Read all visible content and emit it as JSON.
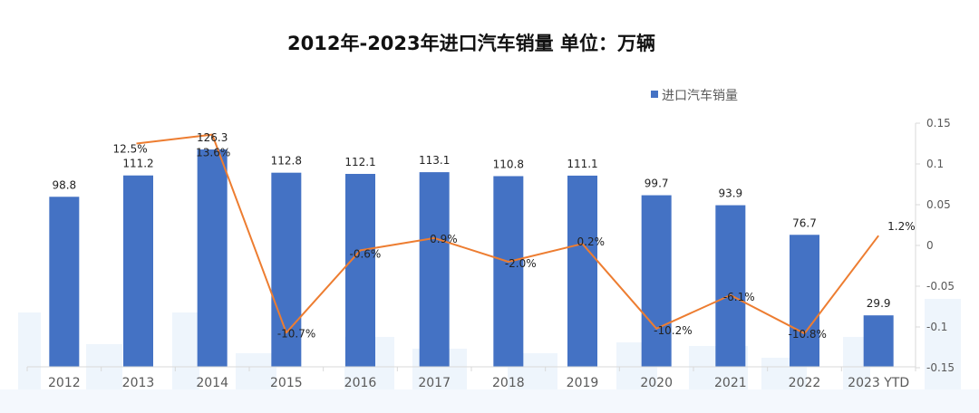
{
  "chart_data": {
    "type": "bar",
    "title": "2012年-2023年进口汽车销量  单位：万辆",
    "categories": [
      "2012",
      "2013",
      "2014",
      "2015",
      "2016",
      "2017",
      "2018",
      "2019",
      "2020",
      "2021",
      "2022",
      "2023 YTD"
    ],
    "series": [
      {
        "name": "进口汽车销量",
        "type": "bar",
        "axis": "left",
        "values": [
          98.8,
          111.2,
          126.3,
          112.8,
          112.1,
          113.1,
          110.8,
          111.1,
          99.7,
          93.9,
          76.7,
          29.9
        ],
        "labels": [
          "98.8",
          "111.2",
          "126.3",
          "112.8",
          "112.1",
          "113.1",
          "110.8",
          "111.1",
          "99.7",
          "93.9",
          "76.7",
          "29.9"
        ]
      },
      {
        "type": "line",
        "axis": "right",
        "values": [
          null,
          0.125,
          0.136,
          -0.107,
          -0.006,
          0.009,
          -0.02,
          0.002,
          -0.102,
          -0.061,
          -0.108,
          0.012
        ],
        "labels": [
          "",
          "12.5%",
          "13.6%",
          "-10.7%",
          "-0.6%",
          "0.9%",
          "-2.0%",
          "0.2%",
          "-10.2%",
          "-6.1%",
          "-10.8%",
          "1.2%"
        ]
      }
    ],
    "y_left_range": [
      0,
      150
    ],
    "y_right": {
      "range": [
        -0.15,
        0.15
      ],
      "ticks": [
        "0.15",
        "0.1",
        "0.05",
        "0",
        "-0.05",
        "-0.1",
        "-0.15"
      ]
    },
    "legend": {
      "position": "top-right"
    },
    "grid": false
  },
  "colors": {
    "bar": "#4472C4",
    "line": "#ED7D31",
    "text": "#222222",
    "axis_text": "#595959",
    "axis_line": "#D9D9D9"
  }
}
